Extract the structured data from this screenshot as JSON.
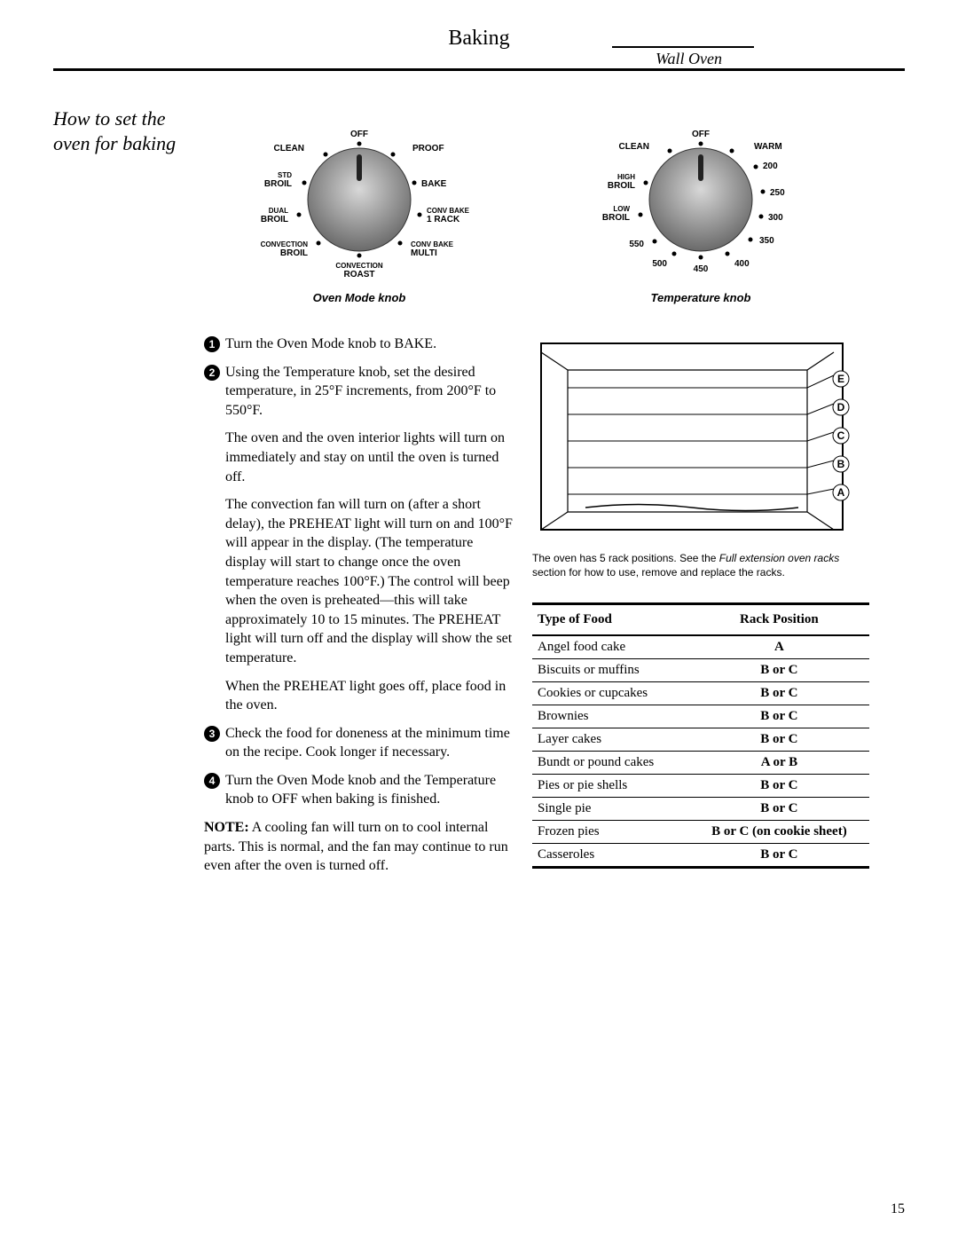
{
  "title": "Baking",
  "subtitle": "Wall Oven",
  "section_heading": "How to set the oven for baking",
  "mode_knob": {
    "caption": "Oven Mode knob",
    "labels": {
      "off": "OFF",
      "clean": "CLEAN",
      "proof": "PROOF",
      "std_broil": "STD\nBROIL",
      "bake": "BAKE",
      "dual_broil": "DUAL\nBROIL",
      "conv_bake_1": "CONV BAKE\n1 RACK",
      "conv_broil": "CONVECTION\nBROIL",
      "conv_bake_multi": "CONV BAKE\nMULTI",
      "conv_roast": "CONVECTION\nROAST"
    }
  },
  "temp_knob": {
    "caption": "Temperature knob",
    "labels": {
      "off": "OFF",
      "clean": "CLEAN",
      "warm": "WARM",
      "t200": "200",
      "high_broil": "HIGH\nBROIL",
      "t250": "250",
      "low_broil": "LOW\nBROIL",
      "t300": "300",
      "t550": "550",
      "t350": "350",
      "t500": "500",
      "t400": "400",
      "t450": "450"
    }
  },
  "steps": [
    {
      "num": "1",
      "text": "Turn the Oven Mode knob to BAKE."
    },
    {
      "num": "2",
      "text": "Using the Temperature knob, set the desired temperature, in 25°F increments, from 200°F to 550°F."
    }
  ],
  "paras": [
    "The oven and the oven interior lights will turn on immediately and stay on until the oven is turned off.",
    "The convection fan will turn on (after a short delay), the PREHEAT light will turn on and 100°F will appear in the display. (The temperature display will start to change once the oven temperature reaches 100°F.) The control will beep when the oven is preheated—this will take approximately 10 to 15 minutes. The PREHEAT light will turn off and the display will show the set temperature.",
    "When the PREHEAT light goes off, place food in the oven."
  ],
  "steps2": [
    {
      "num": "3",
      "text": "Check the food for doneness at the minimum time on the recipe. Cook longer if necessary."
    },
    {
      "num": "4",
      "text": "Turn the Oven Mode knob and the Temperature knob to OFF when baking is finished."
    }
  ],
  "note_label": "NOTE:",
  "note_text": " A cooling fan will turn on to cool internal parts. This is normal, and the fan may continue to run even after the oven is turned off.",
  "rack_diagram": {
    "letters": [
      "E",
      "D",
      "C",
      "B",
      "A"
    ],
    "caption_prefix": "The oven has 5 rack positions. See the ",
    "caption_em": "Full extension oven racks",
    "caption_suffix": " section for how to use, remove and replace the racks."
  },
  "table": {
    "headers": [
      "Type of Food",
      "Rack Position"
    ],
    "rows": [
      [
        "Angel food cake",
        "A"
      ],
      [
        "Biscuits or muffins",
        "B or C"
      ],
      [
        "Cookies or cupcakes",
        "B or C"
      ],
      [
        "Brownies",
        "B or C"
      ],
      [
        "Layer cakes",
        "B or C"
      ],
      [
        "Bundt or pound cakes",
        "A or B"
      ],
      [
        "Pies or pie shells",
        "B or C"
      ],
      [
        "Single pie",
        "B or C"
      ],
      [
        "Frozen pies",
        "B or C (on cookie sheet)"
      ],
      [
        "Casseroles",
        "B or C"
      ]
    ]
  },
  "page_number": "15"
}
